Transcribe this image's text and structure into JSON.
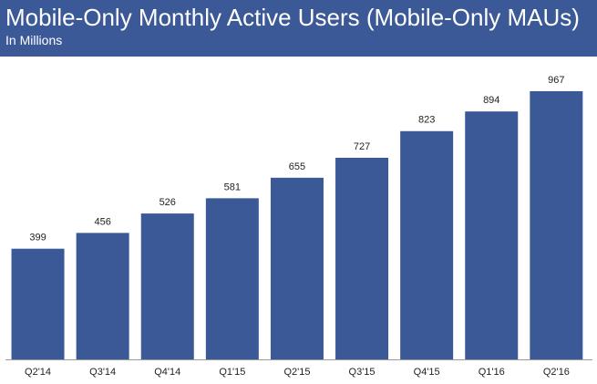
{
  "chart_data": {
    "type": "bar",
    "title": "Mobile-Only Monthly Active Users (Mobile-Only MAUs)",
    "subtitle": "In Millions",
    "categories": [
      "Q2'14",
      "Q3'14",
      "Q4'14",
      "Q1'15",
      "Q2'15",
      "Q3'15",
      "Q4'15",
      "Q1'16",
      "Q2'16"
    ],
    "values": [
      399,
      456,
      526,
      581,
      655,
      727,
      823,
      894,
      967
    ],
    "color": "#3b5897"
  }
}
